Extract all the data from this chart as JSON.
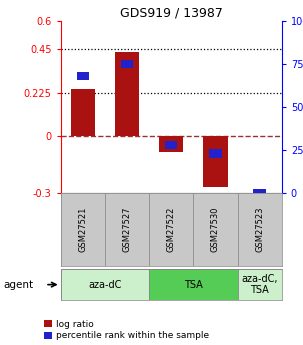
{
  "title": "GDS919 / 13987",
  "samples": [
    "GSM27521",
    "GSM27527",
    "GSM27522",
    "GSM27530",
    "GSM27523"
  ],
  "log_ratios": [
    0.245,
    0.435,
    -0.085,
    -0.27,
    0.0
  ],
  "percentiles": [
    68,
    75,
    28,
    23,
    0
  ],
  "ylim_left": [
    -0.3,
    0.6
  ],
  "ylim_right": [
    0,
    100
  ],
  "yticks_left": [
    -0.3,
    0.0,
    0.225,
    0.45,
    0.6
  ],
  "ytick_labels_left": [
    "-0.3",
    "0",
    "0.225",
    "0.45",
    "0.6"
  ],
  "yticks_right": [
    0,
    25,
    50,
    75,
    100
  ],
  "ytick_labels_right": [
    "0",
    "25",
    "50",
    "75",
    "100%"
  ],
  "hlines": [
    0.225,
    0.45
  ],
  "bar_color": "#aa1111",
  "square_color": "#2222cc",
  "agent_labels": [
    "aza-dC",
    "TSA",
    "aza-dC,\nTSA"
  ],
  "agent_groups": [
    [
      0,
      1
    ],
    [
      2,
      3
    ],
    [
      4
    ]
  ],
  "agent_colors": [
    "#ccf0cc",
    "#55cc55",
    "#ccf0cc"
  ],
  "bar_width": 0.55,
  "background_color": "#ffffff",
  "label_bg": "#c8c8c8",
  "title_fontsize": 9
}
